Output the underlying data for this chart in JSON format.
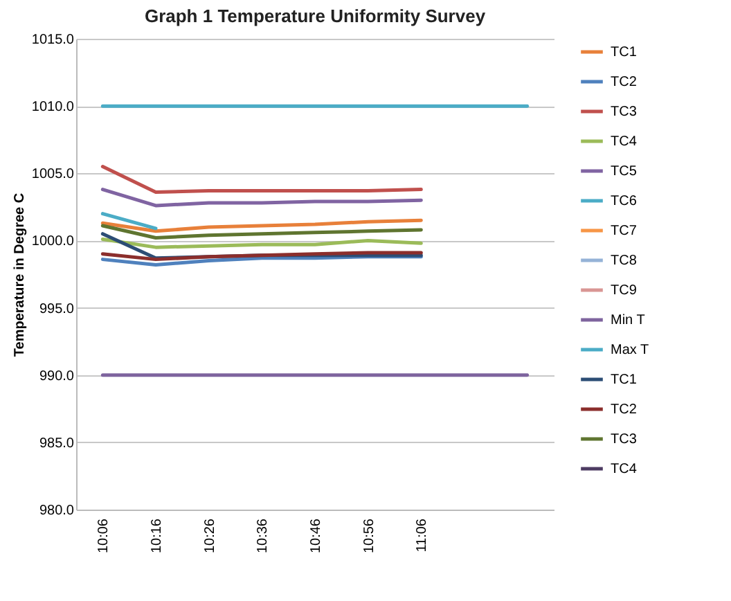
{
  "chart_data": {
    "type": "line",
    "title": "Graph 1 Temperature Uniformity Survey",
    "ylabel": "Temperature in Degree C",
    "categories": [
      "10:06",
      "10:16",
      "10:26",
      "10:36",
      "10:46",
      "10:56",
      "11:06",
      null,
      null
    ],
    "series": [
      {
        "name": "TC1",
        "color": "#e8803a",
        "values": [
          1001.3,
          1000.7,
          1001.0,
          1001.1,
          1001.2,
          1001.4,
          1001.5,
          null,
          null
        ]
      },
      {
        "name": "TC2",
        "color": "#4f81bd",
        "values": [
          998.6,
          998.2,
          998.5,
          998.7,
          998.7,
          998.8,
          998.8,
          null,
          null
        ]
      },
      {
        "name": "TC3",
        "color": "#c0504d",
        "values": [
          1005.5,
          1003.6,
          1003.7,
          1003.7,
          1003.7,
          1003.7,
          1003.8,
          null,
          null
        ]
      },
      {
        "name": "TC4",
        "color": "#9bbb59",
        "values": [
          1000.1,
          999.5,
          999.6,
          999.7,
          999.7,
          1000.0,
          999.8,
          null,
          null
        ]
      },
      {
        "name": "TC5",
        "color": "#8064a2",
        "values": [
          1003.8,
          1002.6,
          1002.8,
          1002.8,
          1002.9,
          1002.9,
          1003.0,
          null,
          null
        ]
      },
      {
        "name": "TC6",
        "color": "#4bacc6",
        "values": [
          1002.0,
          1000.9,
          null,
          null,
          null,
          null,
          null,
          null,
          null
        ]
      },
      {
        "name": "TC7",
        "color": "#f79646",
        "values": [
          null,
          null,
          null,
          null,
          null,
          null,
          null,
          null,
          null
        ]
      },
      {
        "name": "TC8",
        "color": "#95b3d7",
        "values": [
          null,
          null,
          null,
          null,
          null,
          null,
          null,
          null,
          null
        ]
      },
      {
        "name": "TC9",
        "color": "#d99694",
        "values": [
          null,
          null,
          null,
          null,
          null,
          null,
          null,
          null,
          null
        ]
      },
      {
        "name": "Min T",
        "color": "#7e649e",
        "values": [
          990,
          990,
          990,
          990,
          990,
          990,
          990,
          990,
          990
        ]
      },
      {
        "name": "Max T",
        "color": "#4bacc6",
        "values": [
          1010,
          1010,
          1010,
          1010,
          1010,
          1010,
          1010,
          1010,
          1010
        ]
      },
      {
        "name": "TC1",
        "color": "#2c4d75",
        "values": [
          1000.5,
          998.7,
          998.8,
          998.9,
          998.9,
          998.9,
          998.9,
          null,
          null
        ]
      },
      {
        "name": "TC2",
        "color": "#8b2e2c",
        "values": [
          999.0,
          998.6,
          998.8,
          998.9,
          999.0,
          999.1,
          999.1,
          null,
          null
        ]
      },
      {
        "name": "TC3",
        "color": "#5f7530",
        "values": [
          1001.1,
          1000.2,
          1000.4,
          1000.5,
          1000.6,
          1000.7,
          1000.8,
          null,
          null
        ]
      },
      {
        "name": "TC4",
        "color": "#4d3b62",
        "values": [
          null,
          null,
          null,
          null,
          null,
          null,
          null,
          null,
          null
        ]
      }
    ],
    "ylim": [
      980,
      1015
    ],
    "yticks": [
      {
        "value": 980,
        "label": "980.0"
      },
      {
        "value": 985,
        "label": "985.0"
      },
      {
        "value": 990,
        "label": "990.0"
      },
      {
        "value": 995,
        "label": "995.0"
      },
      {
        "value": 1000,
        "label": "1000.0"
      },
      {
        "value": 1005,
        "label": "1005.0"
      },
      {
        "value": 1010,
        "label": "1010.0"
      },
      {
        "value": 1015,
        "label": "1015.0"
      }
    ],
    "grid": "y",
    "legend": "right",
    "marker": "none",
    "line_style": "solid"
  }
}
